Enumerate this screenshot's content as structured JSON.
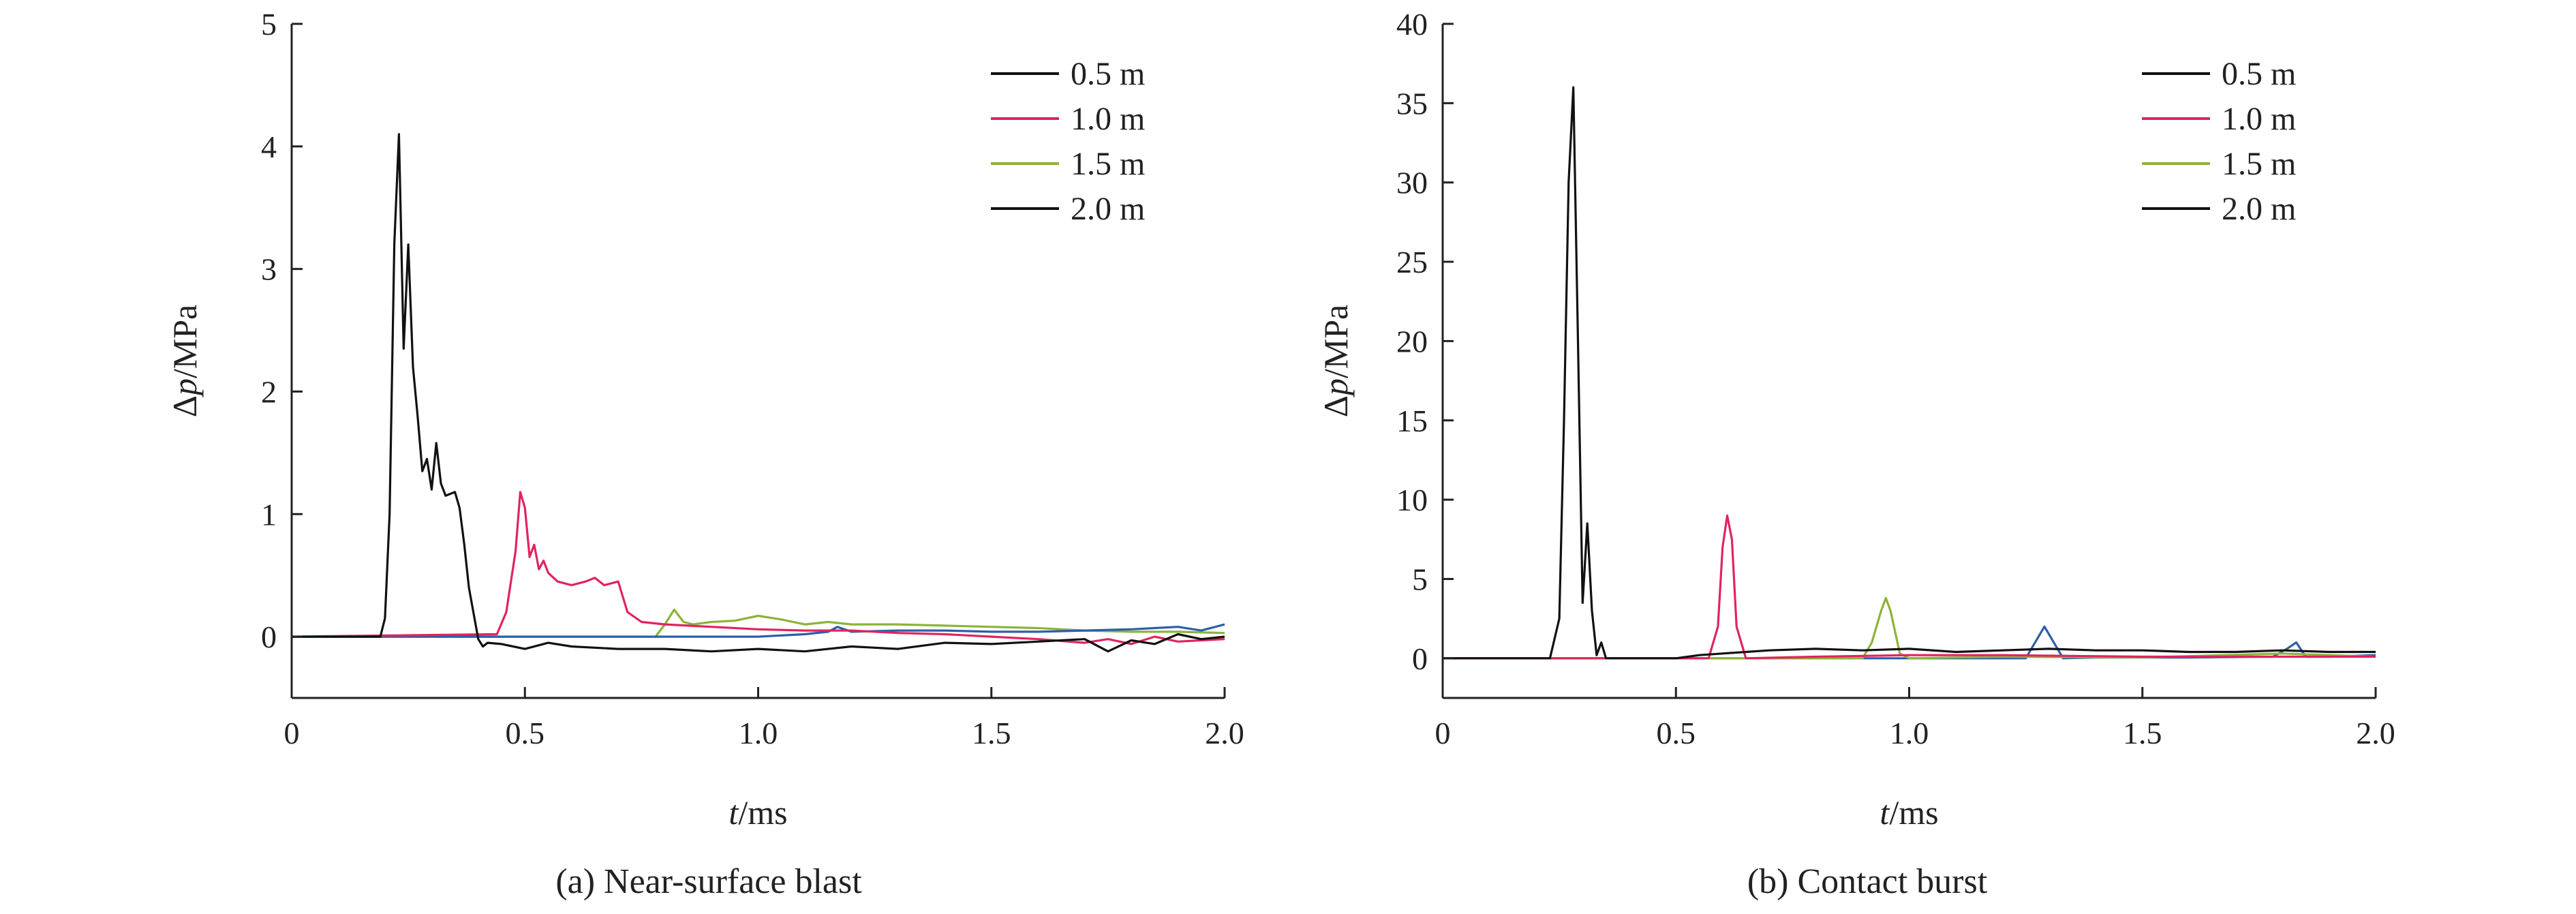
{
  "chart_data": [
    {
      "type": "line",
      "caption": "(a) Near-surface blast",
      "xlabel_italic": "t",
      "xlabel_rest": "/ms",
      "ylabel_delta": "Δ",
      "ylabel_italic": "p",
      "ylabel_rest": "/MPa",
      "xlim": [
        0,
        2.0
      ],
      "ylim": [
        -0.5,
        5
      ],
      "xticks": [
        0,
        0.5,
        1.0,
        1.5,
        2.0
      ],
      "xtick_labels": [
        "0",
        "0.5",
        "1.0",
        "1.5",
        "2.0"
      ],
      "yticks": [
        0,
        1,
        2,
        3,
        4,
        5
      ],
      "ytick_labels": [
        "0",
        "1",
        "2",
        "3",
        "4",
        "5"
      ],
      "legend_placement": "top-right",
      "legend_items": [
        {
          "label": "0.5 m",
          "color": "#111111"
        },
        {
          "label": "1.0 m",
          "color": "#e0245e"
        },
        {
          "label": "1.5 m",
          "color": "#8db33a"
        },
        {
          "label": "2.0 m",
          "color": "#111111"
        }
      ],
      "series": [
        {
          "color": "#8db33a",
          "x": [
            0,
            0.78,
            0.8,
            0.82,
            0.84,
            0.86,
            0.9,
            0.95,
            1.0,
            1.05,
            1.1,
            1.15,
            1.2,
            1.3,
            1.4,
            1.5,
            1.6,
            1.7,
            1.8,
            1.9,
            2.0
          ],
          "y": [
            0,
            0.0,
            0.1,
            0.22,
            0.12,
            0.1,
            0.12,
            0.13,
            0.17,
            0.14,
            0.1,
            0.12,
            0.1,
            0.1,
            0.09,
            0.08,
            0.07,
            0.05,
            0.04,
            0.04,
            0.03
          ]
        },
        {
          "color": "#2b5fa8",
          "x": [
            0,
            1.0,
            1.1,
            1.15,
            1.17,
            1.2,
            1.3,
            1.4,
            1.5,
            1.6,
            1.7,
            1.8,
            1.85,
            1.9,
            1.95,
            2.0
          ],
          "y": [
            0,
            0.0,
            0.02,
            0.04,
            0.08,
            0.04,
            0.05,
            0.05,
            0.04,
            0.04,
            0.05,
            0.06,
            0.07,
            0.08,
            0.05,
            0.1
          ]
        },
        {
          "color": "#e0245e",
          "x": [
            0,
            0.44,
            0.46,
            0.48,
            0.49,
            0.5,
            0.51,
            0.52,
            0.53,
            0.54,
            0.55,
            0.57,
            0.6,
            0.63,
            0.65,
            0.67,
            0.7,
            0.72,
            0.75,
            0.8,
            0.9,
            1.0,
            1.1,
            1.2,
            1.3,
            1.4,
            1.5,
            1.6,
            1.7,
            1.75,
            1.8,
            1.85,
            1.9,
            2.0
          ],
          "y": [
            0,
            0.02,
            0.2,
            0.7,
            1.18,
            1.05,
            0.65,
            0.75,
            0.55,
            0.62,
            0.52,
            0.45,
            0.42,
            0.45,
            0.48,
            0.42,
            0.45,
            0.2,
            0.12,
            0.1,
            0.08,
            0.06,
            0.05,
            0.05,
            0.03,
            0.02,
            0.0,
            -0.02,
            -0.05,
            -0.02,
            -0.06,
            0.0,
            -0.04,
            -0.02
          ]
        },
        {
          "color": "#111111",
          "x": [
            0,
            0.19,
            0.2,
            0.21,
            0.22,
            0.23,
            0.24,
            0.25,
            0.26,
            0.27,
            0.28,
            0.29,
            0.3,
            0.31,
            0.32,
            0.33,
            0.35,
            0.36,
            0.37,
            0.38,
            0.4,
            0.41,
            0.42,
            0.45,
            0.5,
            0.55,
            0.6,
            0.7,
            0.8,
            0.9,
            1.0,
            1.1,
            1.2,
            1.3,
            1.4,
            1.5,
            1.6,
            1.7,
            1.75,
            1.8,
            1.85,
            1.9,
            1.95,
            2.0
          ],
          "y": [
            0,
            0.0,
            0.15,
            1.0,
            3.2,
            4.1,
            2.35,
            3.2,
            2.2,
            1.8,
            1.35,
            1.45,
            1.2,
            1.58,
            1.25,
            1.15,
            1.18,
            1.05,
            0.75,
            0.4,
            -0.02,
            -0.08,
            -0.05,
            -0.06,
            -0.1,
            -0.05,
            -0.08,
            -0.1,
            -0.1,
            -0.12,
            -0.1,
            -0.12,
            -0.08,
            -0.1,
            -0.05,
            -0.06,
            -0.04,
            -0.02,
            -0.12,
            -0.03,
            -0.06,
            0.02,
            -0.02,
            0.0
          ]
        }
      ]
    },
    {
      "type": "line",
      "caption": "(b) Contact burst",
      "xlabel_italic": "t",
      "xlabel_rest": "/ms",
      "ylabel_delta": "Δ",
      "ylabel_italic": "p",
      "ylabel_rest": "/MPa",
      "xlim": [
        0,
        2.0
      ],
      "ylim": [
        -2.5,
        40
      ],
      "xticks": [
        0,
        0.5,
        1.0,
        1.5,
        2.0
      ],
      "xtick_labels": [
        "0",
        "0.5",
        "1.0",
        "1.5",
        "2.0"
      ],
      "yticks": [
        0,
        5,
        10,
        15,
        20,
        25,
        30,
        35,
        40
      ],
      "ytick_labels": [
        "0",
        "5",
        "10",
        "15",
        "20",
        "25",
        "30",
        "35",
        "40"
      ],
      "legend_placement": "top-right",
      "legend_items": [
        {
          "label": "0.5 m",
          "color": "#111111"
        },
        {
          "label": "1.0 m",
          "color": "#e0245e"
        },
        {
          "label": "1.5 m",
          "color": "#8db33a"
        },
        {
          "label": "2.0 m",
          "color": "#111111"
        }
      ],
      "series": [
        {
          "color": "#2b5fa8",
          "x": [
            0,
            1.25,
            1.27,
            1.29,
            1.31,
            1.33,
            1.4,
            1.6,
            1.78,
            1.81,
            1.83,
            1.85,
            1.9,
            2.0
          ],
          "y": [
            0,
            0.0,
            1.0,
            2.0,
            1.0,
            0.0,
            0.05,
            0.05,
            0.1,
            0.6,
            1.0,
            0.1,
            0.1,
            0.2
          ]
        },
        {
          "color": "#8db33a",
          "x": [
            0,
            0.9,
            0.92,
            0.94,
            0.95,
            0.96,
            0.98,
            1.0,
            1.2,
            1.5,
            1.8,
            2.0
          ],
          "y": [
            0,
            0.0,
            1.0,
            3.0,
            3.8,
            3.0,
            0.3,
            0.0,
            0.1,
            0.05,
            0.3,
            0.1
          ]
        },
        {
          "color": "#e0245e",
          "x": [
            0,
            0.57,
            0.59,
            0.6,
            0.61,
            0.62,
            0.63,
            0.65,
            0.8,
            1.0,
            1.2,
            1.5,
            1.8,
            2.0
          ],
          "y": [
            0,
            0.0,
            2.0,
            7.0,
            9.0,
            7.5,
            2.0,
            0.0,
            0.1,
            0.2,
            0.2,
            0.1,
            0.1,
            0.1
          ]
        },
        {
          "color": "#111111",
          "x": [
            0,
            0.23,
            0.25,
            0.26,
            0.27,
            0.28,
            0.29,
            0.3,
            0.31,
            0.32,
            0.33,
            0.34,
            0.35,
            0.4,
            0.5,
            0.55,
            0.6,
            0.65,
            0.7,
            0.8,
            0.9,
            1.0,
            1.1,
            1.2,
            1.3,
            1.4,
            1.5,
            1.6,
            1.7,
            1.8,
            1.9,
            2.0
          ],
          "y": [
            0,
            0.0,
            2.5,
            15.0,
            30.0,
            36.0,
            20.0,
            3.5,
            8.5,
            3.0,
            0.2,
            1.0,
            0.0,
            0.0,
            0.0,
            0.2,
            0.3,
            0.4,
            0.5,
            0.6,
            0.5,
            0.6,
            0.4,
            0.5,
            0.6,
            0.5,
            0.5,
            0.4,
            0.4,
            0.5,
            0.4,
            0.4
          ]
        }
      ]
    }
  ]
}
